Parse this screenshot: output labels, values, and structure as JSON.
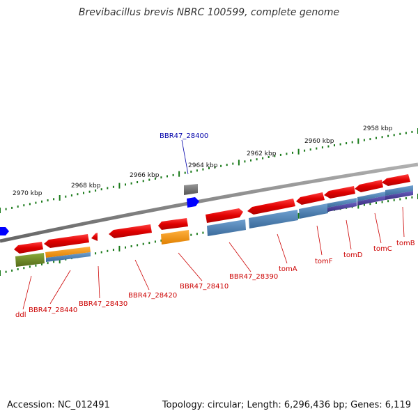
{
  "title": "Brevibacillus brevis NBRC 100599, complete genome",
  "footer": {
    "accession": "Accession: NC_012491",
    "summary": "Topology: circular; Length: 6,296,436 bp; Genes: 6,119"
  },
  "colors": {
    "backbone": "#8a8a8a",
    "ruler": "#1a7a1a",
    "gene_forward": "#e00000",
    "gene_reverse": "#e00000",
    "cds_blue": "#4a7fb5",
    "cds_orange": "#ff9900",
    "cds_green": "#6b8e23",
    "cds_purple": "#4b3f9a",
    "highlight_label": "#0000aa",
    "label": "#cc0000",
    "misc_gray": "#707070",
    "misc_blue": "#0000ff"
  },
  "ruler": [
    {
      "label": "2970 kbp"
    },
    {
      "label": "2968 kbp"
    },
    {
      "label": "2966 kbp"
    },
    {
      "label": "2964 kbp"
    },
    {
      "label": "2962 kbp"
    },
    {
      "label": "2960 kbp"
    },
    {
      "label": "2958 kbp"
    }
  ],
  "genes": [
    {
      "name": "ddl"
    },
    {
      "name": "BBR47_28440"
    },
    {
      "name": "BBR47_28430"
    },
    {
      "name": "BBR47_28420"
    },
    {
      "name": "BBR47_28410"
    },
    {
      "name": "BBR47_28400"
    },
    {
      "name": "BBR47_28390"
    },
    {
      "name": "tomA"
    },
    {
      "name": "tomF"
    },
    {
      "name": "tomD"
    },
    {
      "name": "tomC"
    },
    {
      "name": "tomB"
    }
  ]
}
